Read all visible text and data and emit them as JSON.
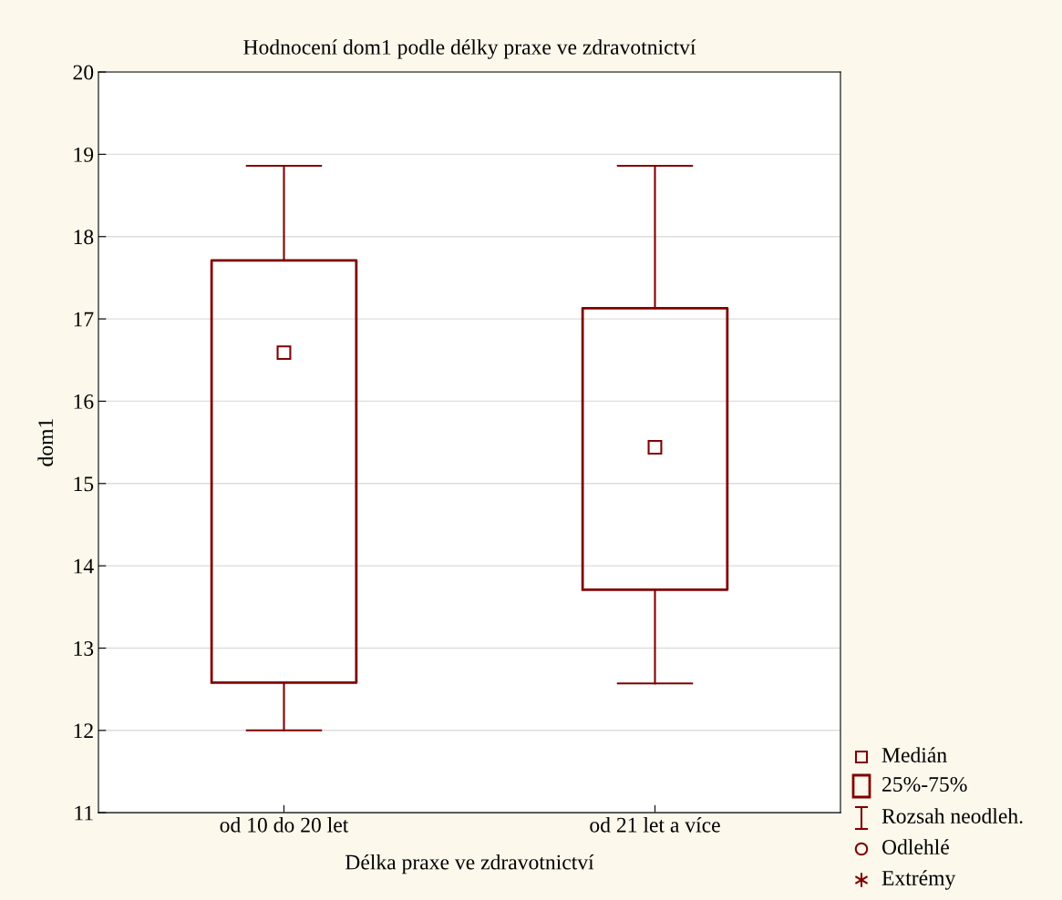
{
  "chart_data": {
    "type": "box",
    "title": "Hodnocení dom1 podle délky praxe ve zdravotnictví",
    "xlabel": "Délka praxe ve zdravotnictví",
    "ylabel": "dom1",
    "categories": [
      "od 10 do 20 let",
      "od 21 let a více"
    ],
    "series": [
      {
        "color": "#800000",
        "boxes": [
          {
            "low": 12.0,
            "q1": 12.58,
            "median": 16.59,
            "q3": 17.71,
            "high": 18.86
          },
          {
            "low": 12.57,
            "q1": 13.71,
            "median": 15.44,
            "q3": 17.13,
            "high": 18.86
          }
        ]
      }
    ],
    "ylim": [
      11,
      20
    ],
    "yticks": [
      11,
      12,
      13,
      14,
      15,
      16,
      17,
      18,
      19,
      20
    ],
    "grid": "y",
    "marker": "square",
    "annotations": [
      "Medián",
      "25%-75%",
      "Rozsah neodleh.",
      "Odlehlé",
      "Extrémy"
    ]
  }
}
